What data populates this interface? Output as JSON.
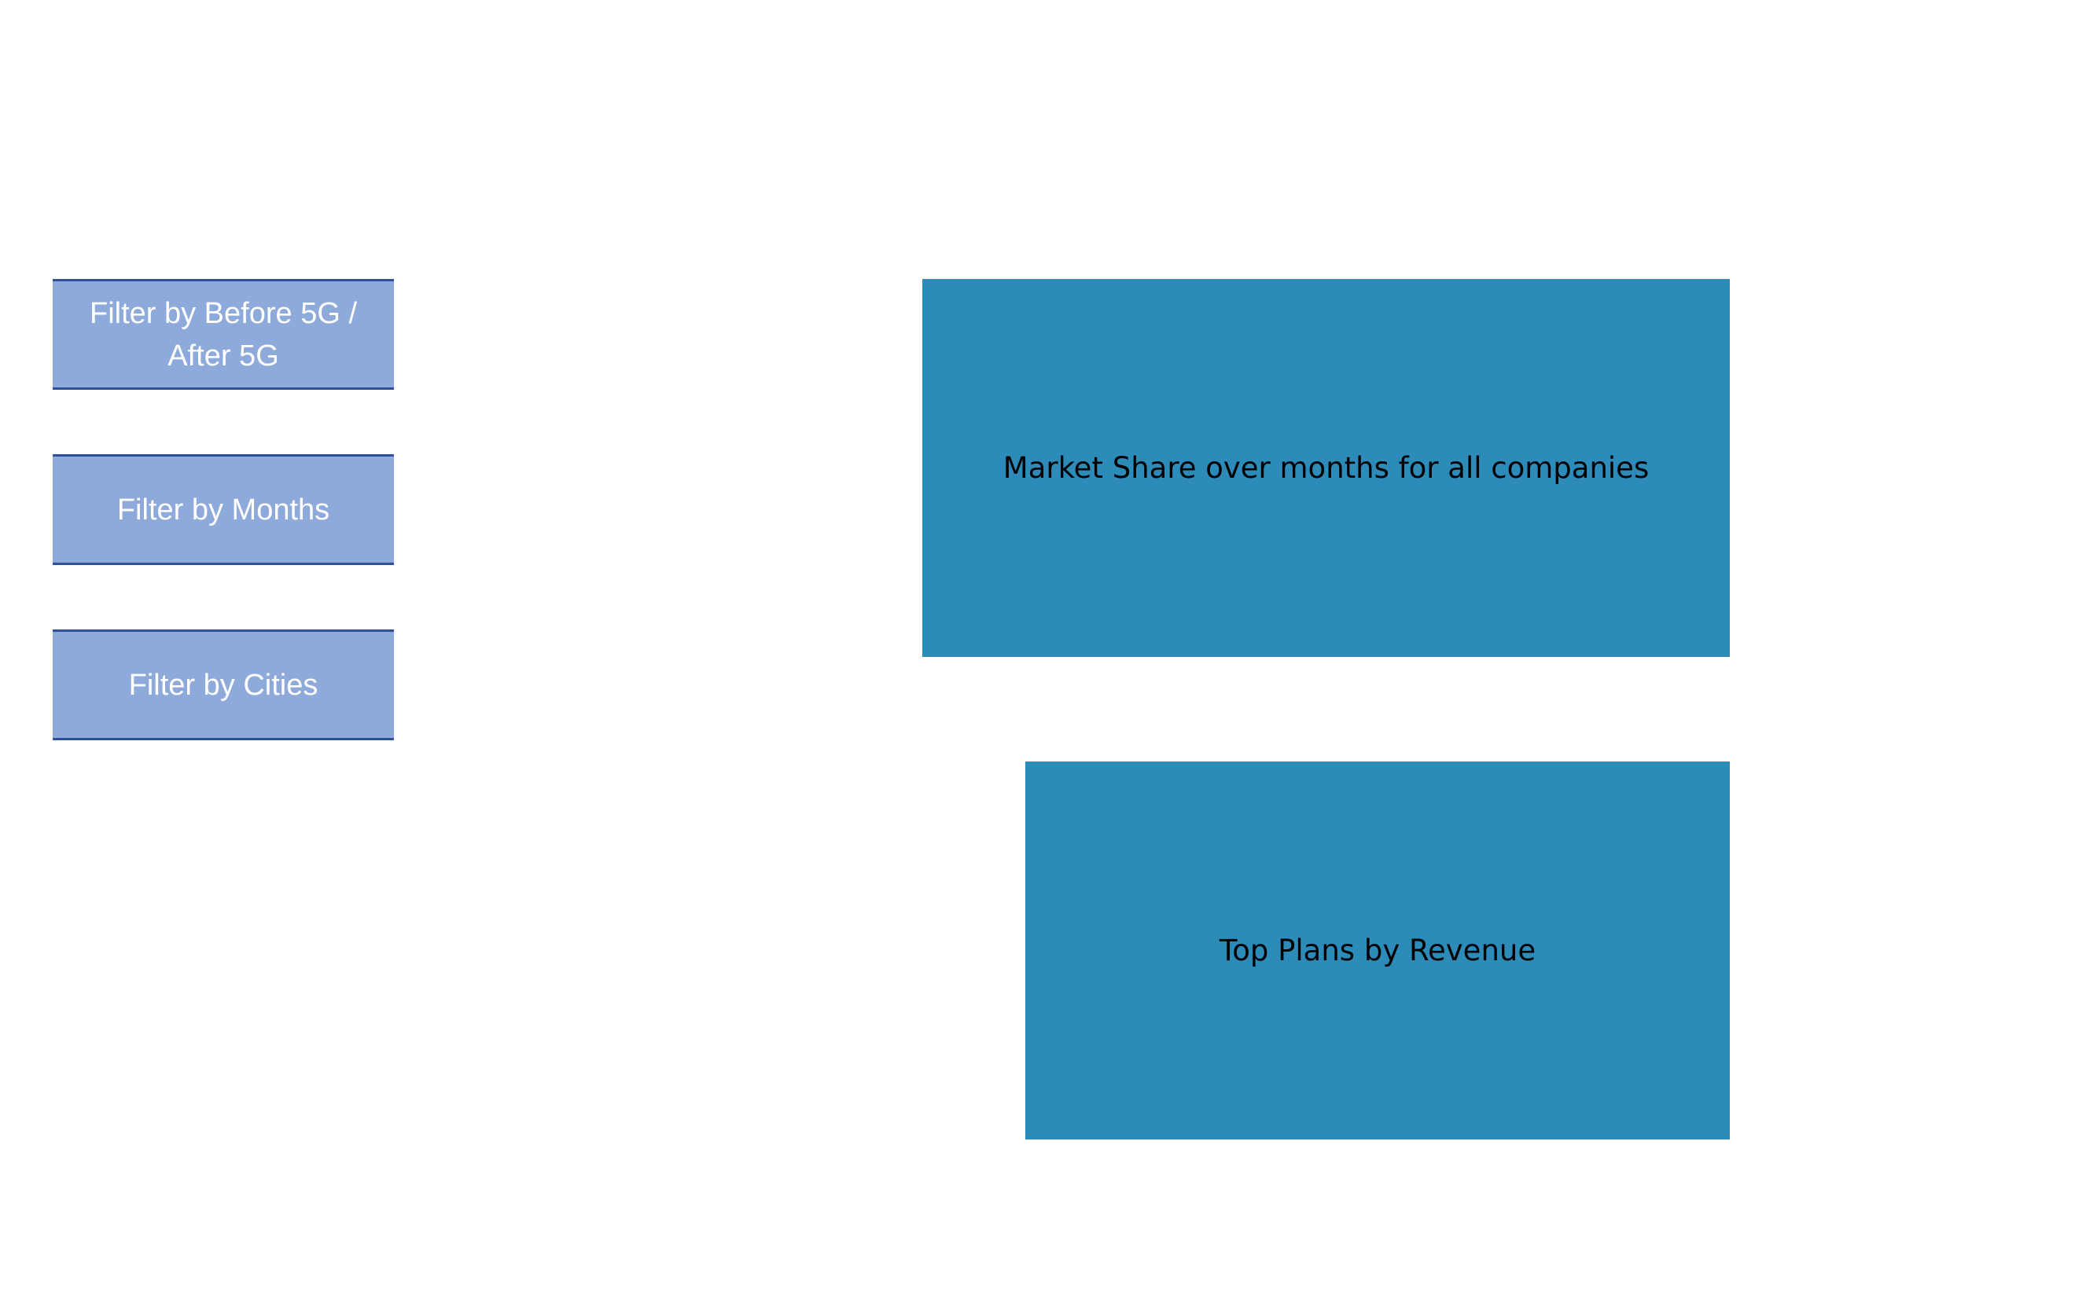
{
  "filters": {
    "before_after_5g": "Filter by Before 5G / After 5G",
    "months": "Filter by Months",
    "cities": "Filter by Cities"
  },
  "panels": {
    "market_share": "Market Share over months for all companies",
    "top_plans": "Top Plans by Revenue"
  },
  "colors": {
    "filter_fill": "#8eaadb",
    "filter_border": "#2f4f9a",
    "panel_fill": "#2d8bba"
  }
}
